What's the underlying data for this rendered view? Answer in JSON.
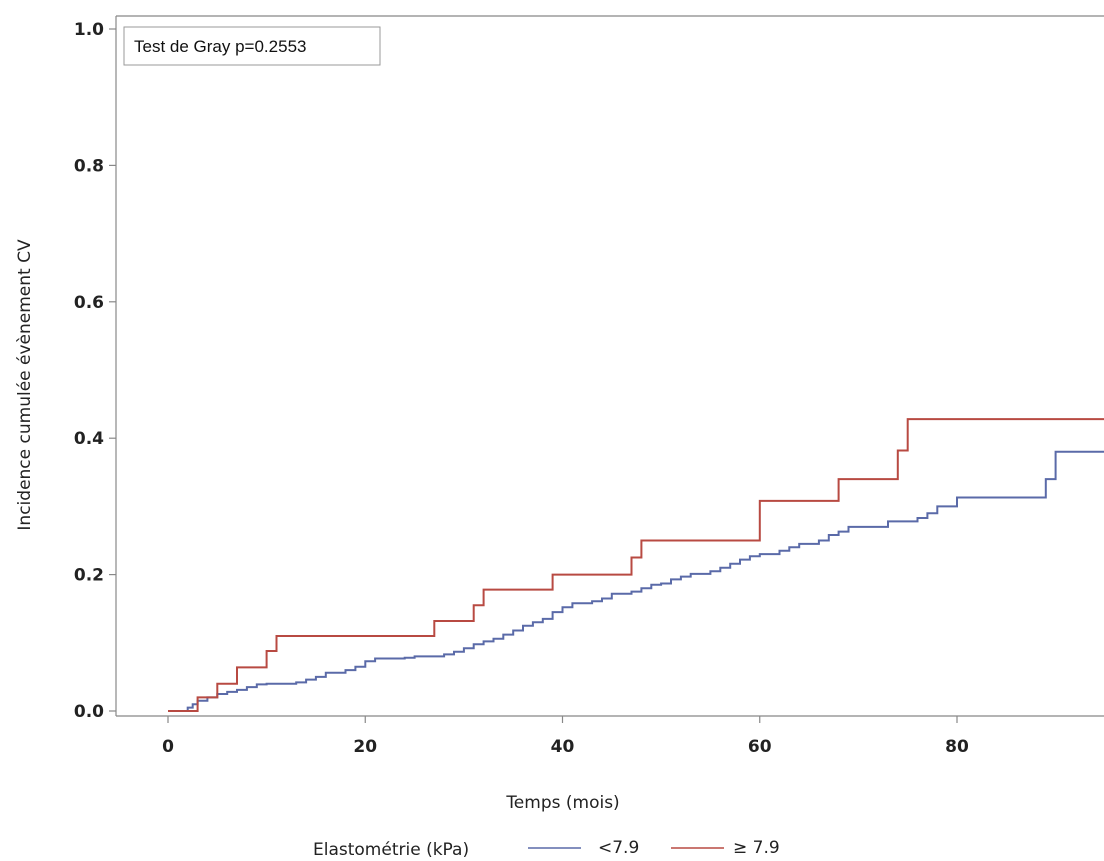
{
  "chart_data": {
    "type": "line",
    "step": true,
    "xlabel": "Temps (mois)",
    "ylabel": "Incidence cumulée évènement CV",
    "xlim": [
      -5,
      95
    ],
    "ylim": [
      -0.01,
      1.0
    ],
    "xticks": [
      0,
      20,
      40,
      60,
      80
    ],
    "xtick_labels": [
      "0",
      "20",
      "40",
      "60",
      "80"
    ],
    "yticks": [
      0.0,
      0.2,
      0.4,
      0.6,
      0.8,
      1.0
    ],
    "ytick_labels": [
      "0.0",
      "0.2",
      "0.4",
      "0.6",
      "0.8",
      "1.0"
    ],
    "grid": false,
    "annotation": "Test de Gray p=0.2553",
    "legend": {
      "title": "Elastométrie (kPa)",
      "position": "bottom"
    },
    "series": [
      {
        "name": "<7.9",
        "color": "#5a6aa8",
        "points": [
          [
            0,
            0
          ],
          [
            2,
            0.005
          ],
          [
            2.5,
            0.01
          ],
          [
            3,
            0.015
          ],
          [
            4,
            0.02
          ],
          [
            5,
            0.025
          ],
          [
            6,
            0.028
          ],
          [
            7,
            0.031
          ],
          [
            8,
            0.035
          ],
          [
            9,
            0.039
          ],
          [
            10,
            0.04
          ],
          [
            13,
            0.042
          ],
          [
            14,
            0.046
          ],
          [
            15,
            0.05
          ],
          [
            16,
            0.056
          ],
          [
            18,
            0.06
          ],
          [
            19,
            0.065
          ],
          [
            20,
            0.073
          ],
          [
            21,
            0.077
          ],
          [
            24,
            0.078
          ],
          [
            25,
            0.08
          ],
          [
            28,
            0.083
          ],
          [
            29,
            0.087
          ],
          [
            30,
            0.092
          ],
          [
            31,
            0.098
          ],
          [
            32,
            0.102
          ],
          [
            33,
            0.106
          ],
          [
            34,
            0.112
          ],
          [
            35,
            0.118
          ],
          [
            36,
            0.125
          ],
          [
            37,
            0.13
          ],
          [
            38,
            0.135
          ],
          [
            39,
            0.145
          ],
          [
            40,
            0.152
          ],
          [
            41,
            0.158
          ],
          [
            43,
            0.161
          ],
          [
            44,
            0.165
          ],
          [
            45,
            0.172
          ],
          [
            47,
            0.175
          ],
          [
            48,
            0.18
          ],
          [
            49,
            0.185
          ],
          [
            50,
            0.187
          ],
          [
            51,
            0.193
          ],
          [
            52,
            0.197
          ],
          [
            53,
            0.201
          ],
          [
            55,
            0.205
          ],
          [
            56,
            0.21
          ],
          [
            57,
            0.216
          ],
          [
            58,
            0.222
          ],
          [
            59,
            0.227
          ],
          [
            60,
            0.23
          ],
          [
            62,
            0.235
          ],
          [
            63,
            0.24
          ],
          [
            64,
            0.245
          ],
          [
            66,
            0.25
          ],
          [
            67,
            0.258
          ],
          [
            68,
            0.263
          ],
          [
            69,
            0.27
          ],
          [
            73,
            0.278
          ],
          [
            76,
            0.283
          ],
          [
            77,
            0.29
          ],
          [
            78,
            0.3
          ],
          [
            80,
            0.313
          ],
          [
            89,
            0.34
          ],
          [
            90,
            0.38
          ],
          [
            95,
            0.38
          ]
        ]
      },
      {
        "name": "≥ 7.9",
        "color": "#b84a42",
        "points": [
          [
            0,
            0
          ],
          [
            3,
            0.02
          ],
          [
            5,
            0.04
          ],
          [
            7,
            0.064
          ],
          [
            10,
            0.088
          ],
          [
            11,
            0.11
          ],
          [
            27,
            0.132
          ],
          [
            31,
            0.155
          ],
          [
            32,
            0.178
          ],
          [
            39,
            0.2
          ],
          [
            47,
            0.225
          ],
          [
            48,
            0.25
          ],
          [
            60,
            0.308
          ],
          [
            68,
            0.34
          ],
          [
            74,
            0.382
          ],
          [
            75,
            0.428
          ],
          [
            95,
            0.428
          ]
        ]
      }
    ]
  }
}
